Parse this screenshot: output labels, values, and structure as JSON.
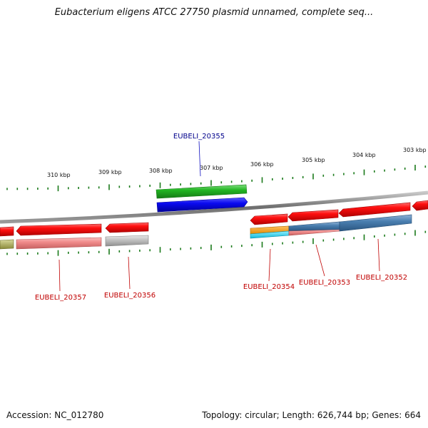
{
  "title": "Eubacterium eligens ATCC 27750 plasmid unnamed, complete seq...",
  "footer": {
    "accession": "Accession: NC_012780",
    "summary": "Topology: circular; Length: 626,744 bp; Genes: 664"
  },
  "ruler": {
    "tick_labels": [
      "310 kbp",
      "309 kbp",
      "308 kbp",
      "307 kbp",
      "306 kbp",
      "305 kbp",
      "304 kbp",
      "303 kbp"
    ],
    "tick_color": "#1a7a1a"
  },
  "colors": {
    "backbone": "#8a8a8a",
    "forward_cds": "#2db52d",
    "forward_gene": "#0a0ae6",
    "reverse_cds": "#e60000",
    "highlight_label": "#00008b",
    "label": "#c00000"
  },
  "genes": [
    {
      "label": "EUBELI_20355",
      "highlighted": true
    },
    {
      "label": "EUBELI_20357",
      "highlighted": false
    },
    {
      "label": "EUBELI_20356",
      "highlighted": false
    },
    {
      "label": "EUBELI_20354",
      "highlighted": false
    },
    {
      "label": "EUBELI_20353",
      "highlighted": false
    },
    {
      "label": "EUBELI_20352",
      "highlighted": false
    }
  ]
}
